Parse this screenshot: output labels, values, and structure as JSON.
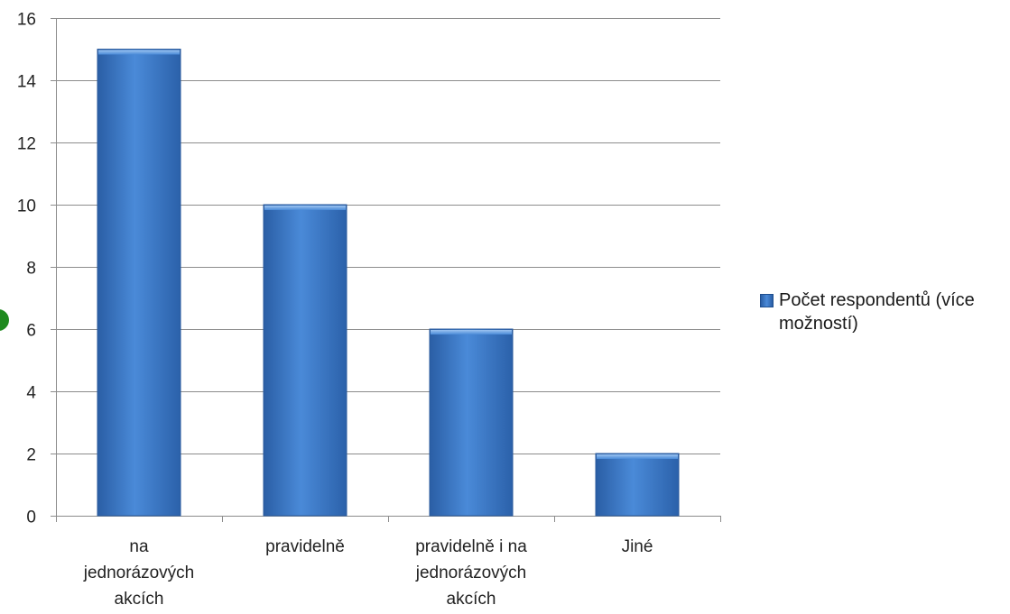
{
  "chart_data": {
    "type": "bar",
    "categories": [
      "na\njednorázových\nakcích",
      "pravidelně",
      "pravidelně i na\njednorázových\nakcích",
      "Jiné"
    ],
    "series": [
      {
        "name": "Počet respondentů (více možností)",
        "values": [
          15,
          10,
          6,
          2
        ],
        "color": "#3a78c8"
      }
    ],
    "ylim": [
      0,
      16
    ],
    "yticks": [
      0,
      2,
      4,
      6,
      8,
      10,
      12,
      14,
      16
    ],
    "grid": true,
    "legend_position": "right",
    "title": "",
    "xlabel": "",
    "ylabel": ""
  },
  "colors": {
    "bar_light": "#4a8ad8",
    "bar_dark": "#2a5ea5",
    "grid": "#8c8c8c",
    "marker": "#1f8a1f"
  }
}
